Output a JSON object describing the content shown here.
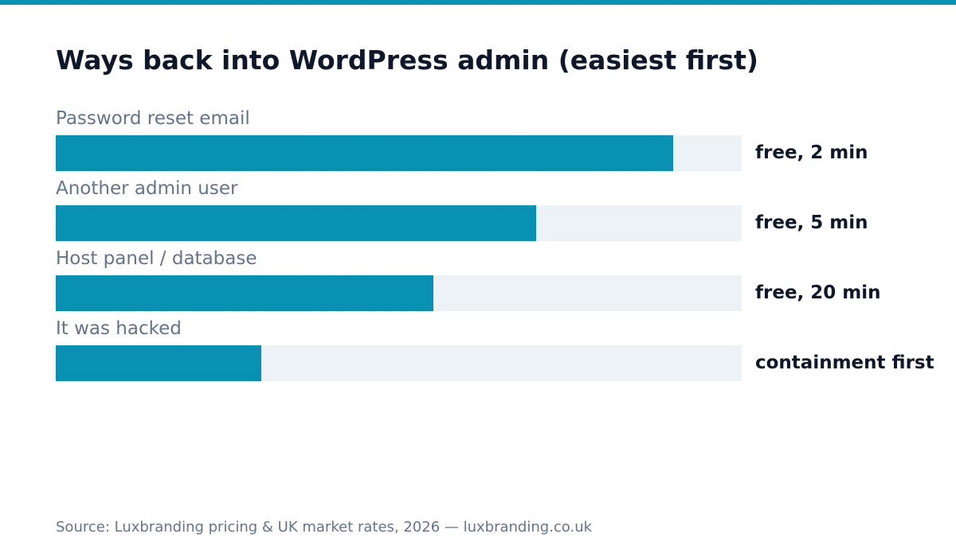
{
  "chart_data": {
    "type": "bar",
    "orientation": "horizontal",
    "title": "Ways back into WordPress admin (easiest first)",
    "categories": [
      "Password reset email",
      "Another admin user",
      "Host panel / database",
      "It was hacked"
    ],
    "values": [
      90,
      70,
      55,
      30
    ],
    "value_labels": [
      "free, 2 min",
      "free, 5 min",
      "free, 20 min",
      "containment first"
    ],
    "xlim": [
      0,
      100
    ],
    "grid": false,
    "legend": "none",
    "colors": {
      "bar": "#0891b2",
      "track": "#edf2f6",
      "accent": "#0891b2"
    }
  },
  "footer": {
    "source": "Source: Luxbranding pricing & UK market rates, 2026 — luxbranding.co.uk"
  }
}
